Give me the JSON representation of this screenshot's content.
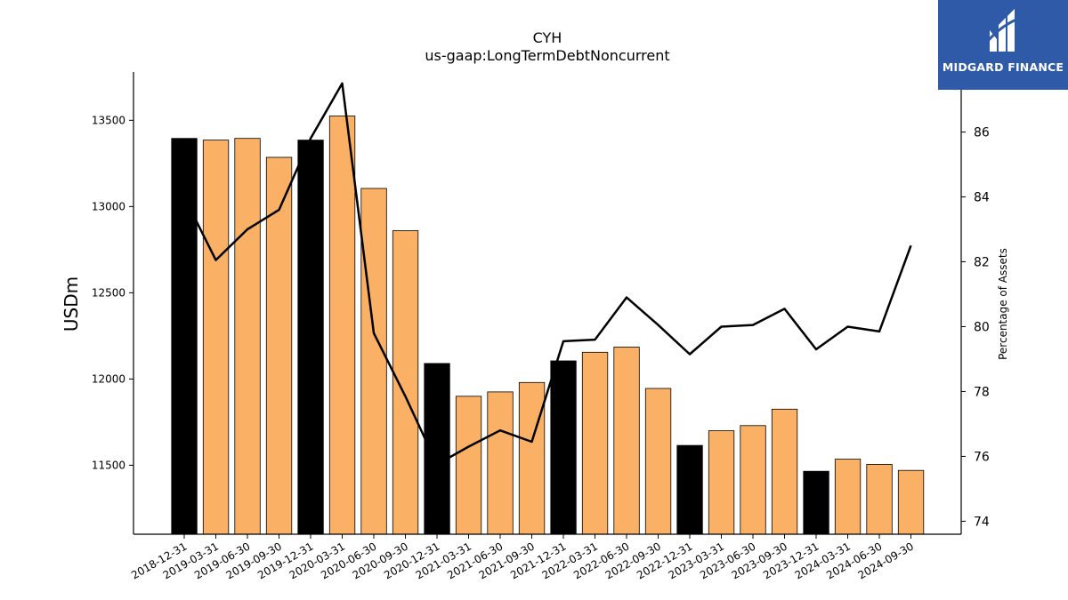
{
  "chart_data": {
    "type": "bar",
    "title": "CYH",
    "subtitle": "us-gaap:LongTermDebtNoncurrent",
    "ylabel": "USDm",
    "y2label": "Percentage of Assets",
    "ylim": [
      11100,
      13780
    ],
    "y2lim": [
      73.6,
      87.85
    ],
    "yticks": [
      11500,
      12000,
      12500,
      13000,
      13500
    ],
    "y2ticks": [
      74,
      76,
      78,
      80,
      82,
      84,
      86
    ],
    "categories": [
      "2018-12-31",
      "2019-03-31",
      "2019-06-30",
      "2019-09-30",
      "2019-12-31",
      "2020-03-31",
      "2020-06-30",
      "2020-09-30",
      "2020-12-31",
      "2021-03-31",
      "2021-06-30",
      "2021-09-30",
      "2021-12-31",
      "2022-03-31",
      "2022-06-30",
      "2022-09-30",
      "2022-12-31",
      "2023-03-31",
      "2023-06-30",
      "2023-09-30",
      "2023-12-31",
      "2024-03-31",
      "2024-06-30",
      "2024-09-30"
    ],
    "values": [
      13395,
      13385,
      13395,
      13285,
      13385,
      13525,
      13105,
      12860,
      12090,
      11900,
      11925,
      11980,
      12105,
      12155,
      12185,
      11945,
      11615,
      11700,
      11730,
      11825,
      11465,
      11535,
      11505,
      11470
    ],
    "year_end": [
      true,
      false,
      false,
      false,
      true,
      false,
      false,
      false,
      true,
      false,
      false,
      false,
      true,
      false,
      false,
      false,
      true,
      false,
      false,
      false,
      true,
      false,
      false,
      false
    ],
    "line_values": [
      84.0,
      82.05,
      83.0,
      83.6,
      85.8,
      87.5,
      79.8,
      77.85,
      75.75,
      76.3,
      76.8,
      76.45,
      79.55,
      79.6,
      80.9,
      80.05,
      79.15,
      80.0,
      80.05,
      80.55,
      79.3,
      80.0,
      79.85,
      82.5
    ],
    "grid": false,
    "colors": {
      "bar_year_end": "#000000",
      "bar_quarter": "#fbb165",
      "line": "#000000",
      "bar_edge": "#000000"
    }
  },
  "logo": {
    "text": "MIDGARD FINANCE",
    "background": "#2f5aa8"
  }
}
